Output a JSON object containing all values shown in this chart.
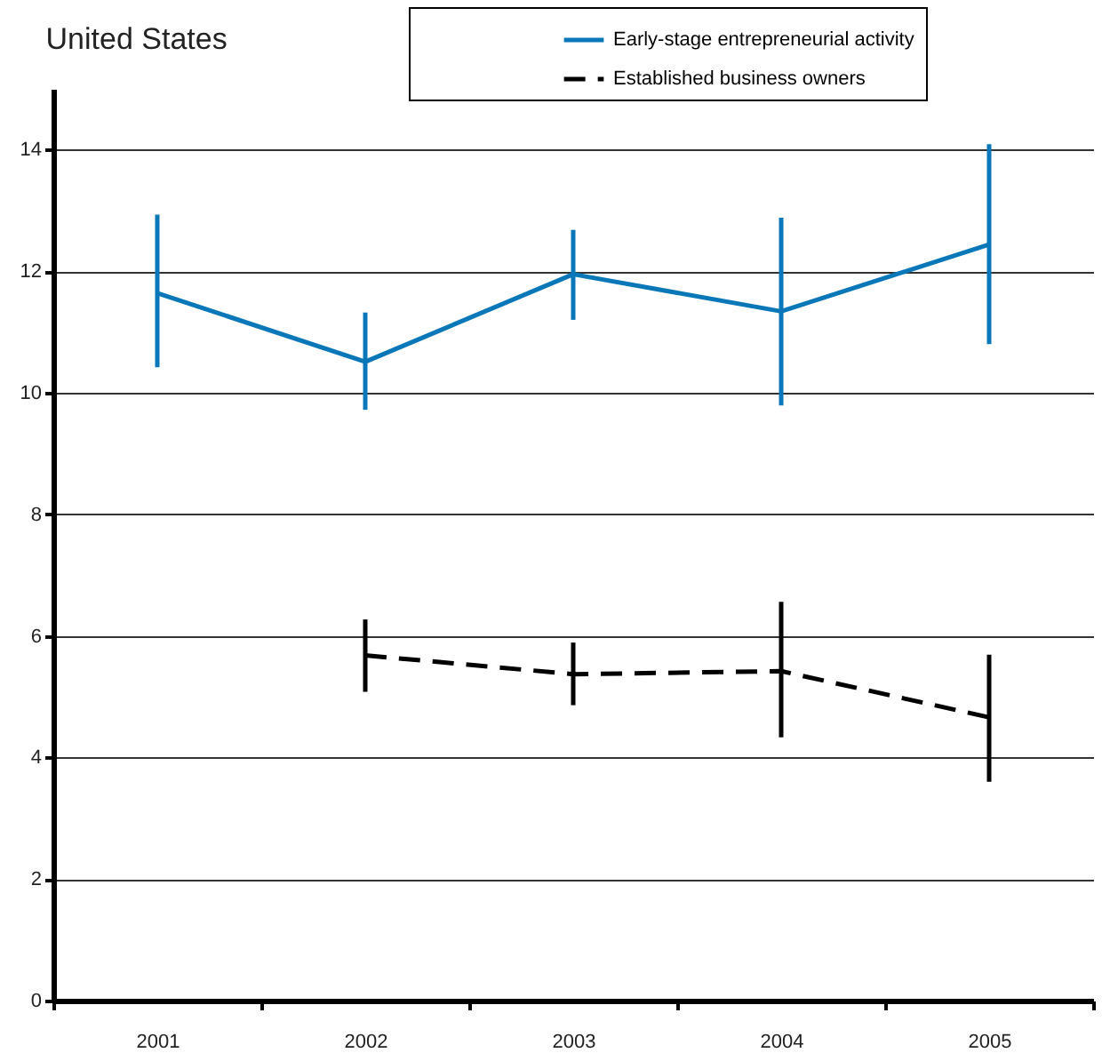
{
  "chart_data": {
    "type": "line",
    "title": "United States",
    "categories": [
      "2001",
      "2002",
      "2003",
      "2004",
      "2005"
    ],
    "series": [
      {
        "name": "Early-stage entrepreneurial activity",
        "color": "#0a77b8",
        "line_style": "solid",
        "values": [
          11.64,
          10.51,
          11.95,
          11.34,
          12.44
        ],
        "errors": [
          [
            10.42,
            12.93
          ],
          [
            9.72,
            11.32
          ],
          [
            11.2,
            12.68
          ],
          [
            9.79,
            12.88
          ],
          [
            10.8,
            14.09
          ]
        ]
      },
      {
        "name": "Established business owners",
        "color": "#000000",
        "line_style": "dashed",
        "values": [
          null,
          5.68,
          5.37,
          5.42,
          4.66
        ],
        "errors": [
          null,
          [
            5.08,
            6.27
          ],
          [
            4.86,
            5.89
          ],
          [
            4.33,
            6.56
          ],
          [
            3.6,
            5.69
          ]
        ]
      }
    ],
    "ylim": [
      0,
      15
    ],
    "yticks": [
      0,
      2,
      4,
      6,
      8,
      10,
      12,
      14
    ],
    "grid": "y",
    "legend": "top right",
    "marker": "none"
  }
}
